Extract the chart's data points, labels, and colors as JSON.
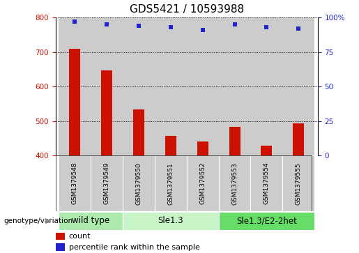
{
  "title": "GDS5421 / 10593988",
  "samples": [
    "GSM1379548",
    "GSM1379549",
    "GSM1379550",
    "GSM1379551",
    "GSM1379552",
    "GSM1379553",
    "GSM1379554",
    "GSM1379555"
  ],
  "counts": [
    710,
    648,
    533,
    458,
    440,
    484,
    428,
    494
  ],
  "percentile_ranks": [
    97,
    95,
    94,
    93,
    91,
    95,
    93,
    92
  ],
  "ylim_left": [
    400,
    800
  ],
  "ylim_right": [
    0,
    100
  ],
  "yticks_left": [
    400,
    500,
    600,
    700,
    800
  ],
  "yticks_right": [
    0,
    25,
    50,
    75,
    100
  ],
  "group_spans": [
    {
      "start": 0,
      "end": 1,
      "label": "wild type",
      "color": "#aeeaae"
    },
    {
      "start": 2,
      "end": 4,
      "label": "Sle1.3",
      "color": "#c8f5c8"
    },
    {
      "start": 5,
      "end": 7,
      "label": "Sle1.3/E2-2het",
      "color": "#66dd66"
    }
  ],
  "bar_color": "#cc1100",
  "dot_color": "#2222cc",
  "bg_color": "#cccccc",
  "plot_bg": "#ffffff",
  "left_axis_color": "#cc1100",
  "right_axis_color": "#2222cc",
  "title_fontsize": 11,
  "tick_fontsize": 7.5,
  "label_fontsize": 6.5,
  "legend_fontsize": 8,
  "group_label_fontsize": 8.5,
  "bar_width": 0.35
}
